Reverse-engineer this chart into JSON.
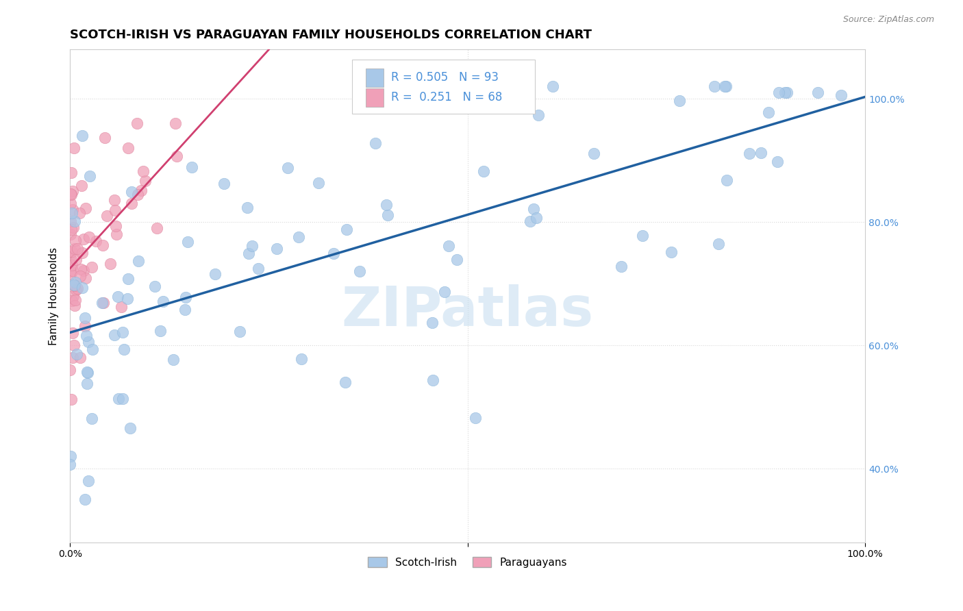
{
  "title": "SCOTCH-IRISH VS PARAGUAYAN FAMILY HOUSEHOLDS CORRELATION CHART",
  "source": "Source: ZipAtlas.com",
  "ylabel": "Family Households",
  "y_tick_values": [
    0.4,
    0.6,
    0.8,
    1.0
  ],
  "y_tick_labels": [
    "40.0%",
    "60.0%",
    "80.0%",
    "100.0%"
  ],
  "x_tick_values": [
    0.0,
    0.5,
    1.0
  ],
  "x_tick_labels": [
    "0.0%",
    "",
    "100.0%"
  ],
  "legend_labels": [
    "Scotch-Irish",
    "Paraguayans"
  ],
  "r_scotch": 0.505,
  "n_scotch": 93,
  "r_para": 0.251,
  "n_para": 68,
  "scotch_color": "#a8c8e8",
  "scotch_edge_color": "#90b8dc",
  "scotch_line_color": "#2060a0",
  "para_color": "#f0a0b8",
  "para_edge_color": "#e088a0",
  "para_line_color": "#d04070",
  "watermark_color": "#c8dff0",
  "background_color": "#ffffff",
  "grid_color": "#d8d8d8",
  "tick_color": "#4a90d9",
  "title_fontsize": 13,
  "axis_label_fontsize": 11,
  "legend_fontsize": 12,
  "ylim_min": 0.28,
  "ylim_max": 1.08,
  "xlim_min": 0.0,
  "xlim_max": 1.0
}
